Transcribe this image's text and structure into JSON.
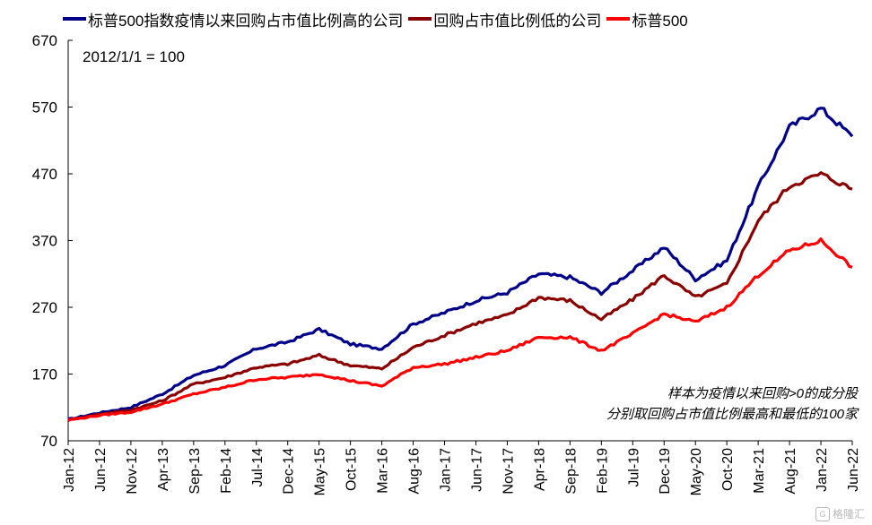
{
  "chart_data": {
    "type": "line",
    "title": "",
    "xlabel": "",
    "ylabel": "",
    "ylim": [
      70,
      670
    ],
    "y_ticks": [
      70,
      170,
      270,
      370,
      470,
      570,
      670
    ],
    "x_tick_labels": [
      "Jan-12",
      "Jun-12",
      "Nov-12",
      "Apr-13",
      "Sep-13",
      "Feb-14",
      "Jul-14",
      "Dec-14",
      "May-15",
      "Oct-15",
      "Mar-16",
      "Aug-16",
      "Jan-17",
      "Jun-17",
      "Nov-17",
      "Apr-18",
      "Sep-18",
      "Feb-19",
      "Jul-19",
      "Dec-19",
      "May-20",
      "Oct-20",
      "Mar-21",
      "Aug-21",
      "Jan-22",
      "Jun-22"
    ],
    "grid": false,
    "legend_position": "top",
    "annotations": {
      "base": "2012/1/1 = 100",
      "sample_line1": "样本为疫情以来回购>0的成分股",
      "sample_line2": "分别取回购占市值比例最高和最低的100家"
    },
    "x": [
      "2012-01",
      "2012-06",
      "2012-11",
      "2013-04",
      "2013-09",
      "2014-02",
      "2014-07",
      "2014-12",
      "2015-05",
      "2015-10",
      "2016-03",
      "2016-08",
      "2017-01",
      "2017-06",
      "2017-11",
      "2018-04",
      "2018-09",
      "2019-02",
      "2019-07",
      "2019-12",
      "2020-05",
      "2020-10",
      "2021-03",
      "2021-08",
      "2022-01",
      "2022-06"
    ],
    "series": [
      {
        "name": "标普500指数疫情以来回购占市值比例高的公司",
        "color": "#00008B",
        "values": [
          102,
          112,
          120,
          140,
          168,
          183,
          208,
          218,
          237,
          215,
          208,
          245,
          262,
          280,
          292,
          320,
          315,
          292,
          325,
          360,
          312,
          340,
          450,
          540,
          568,
          526
        ]
      },
      {
        "name": "回购占市值比例低的公司",
        "color": "#8B0000",
        "values": [
          101,
          110,
          116,
          130,
          155,
          165,
          180,
          185,
          198,
          183,
          178,
          210,
          228,
          246,
          258,
          285,
          280,
          252,
          282,
          318,
          285,
          305,
          400,
          452,
          470,
          447
        ]
      },
      {
        "name": "标普500",
        "color": "#FF0000",
        "values": [
          101,
          108,
          113,
          125,
          140,
          150,
          162,
          165,
          170,
          160,
          152,
          180,
          185,
          195,
          205,
          225,
          225,
          205,
          230,
          260,
          248,
          270,
          318,
          355,
          370,
          330
        ]
      }
    ]
  },
  "watermark": "格隆汇"
}
